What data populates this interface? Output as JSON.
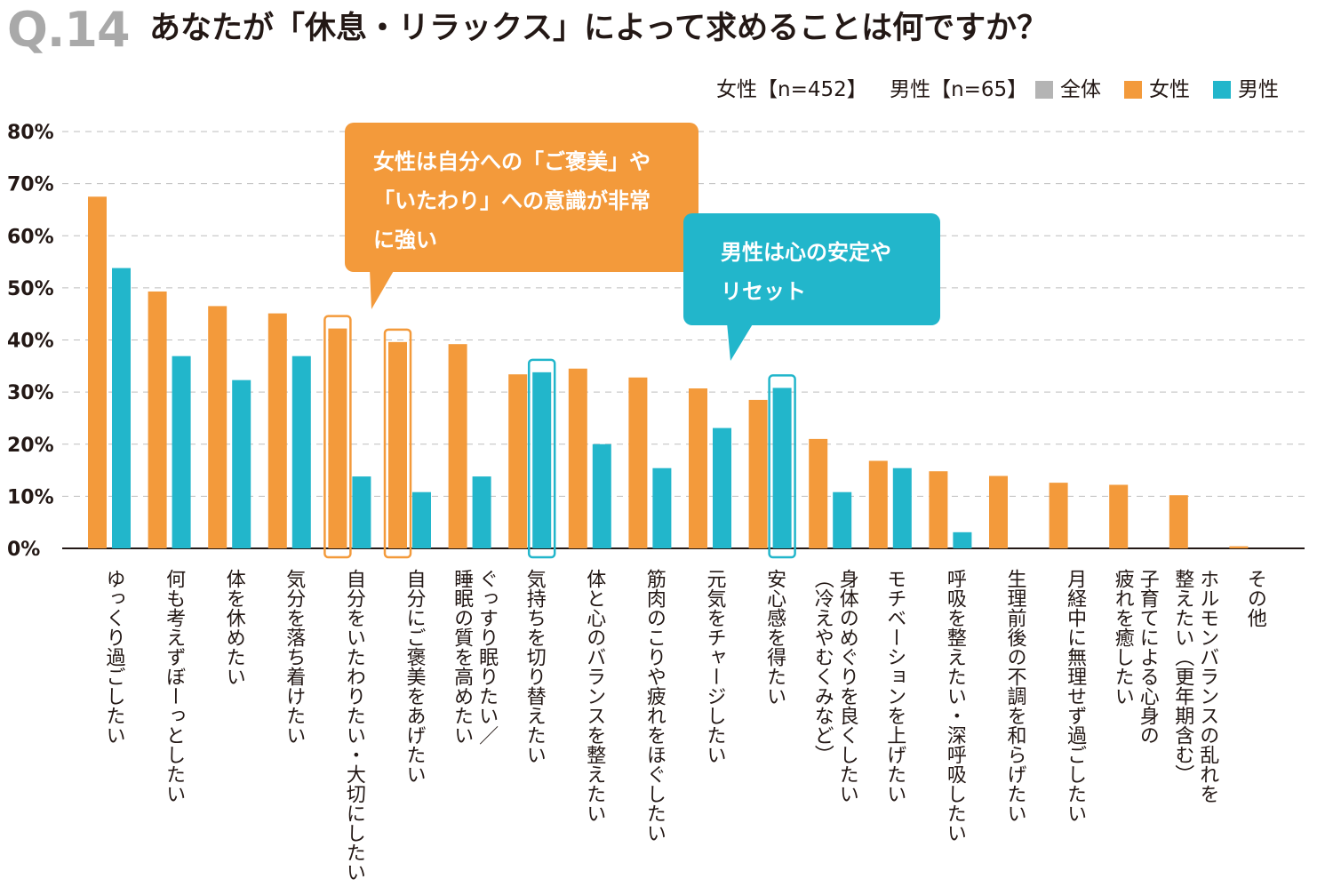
{
  "header": {
    "qnum": "Q.14",
    "question": "あなたが「休息・リラックス」によって求めることは何ですか？"
  },
  "sample": {
    "female": "女性【n=452】",
    "male": "男性【n=65】"
  },
  "legend": [
    {
      "label": "全体",
      "color": "#b4b4b4"
    },
    {
      "label": "女性",
      "color": "#f39a3b"
    },
    {
      "label": "男性",
      "color": "#22b6cb"
    }
  ],
  "callouts": {
    "female": [
      "女性は自分への「ご褒美」や",
      "「いたわり」への意識が非常",
      "に強い"
    ],
    "male": [
      "男性は心の安定や",
      "リセット"
    ]
  },
  "colors": {
    "female": "#f39a3b",
    "male": "#22b6cb",
    "grid": "#bdbdbd",
    "axis": "#231815"
  },
  "chart_data": {
    "type": "bar",
    "ylim": [
      0,
      80
    ],
    "yticks": [
      "0%",
      "10%",
      "20%",
      "30%",
      "40%",
      "50%",
      "60%",
      "70%",
      "80%"
    ],
    "grid": true,
    "legend_position": "top-right",
    "categories": [
      [
        "ゆっくり過ごしたい"
      ],
      [
        "何も考えずぼーっとしたい"
      ],
      [
        "体を休めたい"
      ],
      [
        "気分を落ち着けたい"
      ],
      [
        "自分をいたわりたい・大切にしたい"
      ],
      [
        "自分にご褒美をあげたい"
      ],
      [
        "ぐっすり眠りたい／",
        "睡眠の質を高めたい"
      ],
      [
        "気持ちを切り替えたい"
      ],
      [
        "体と心のバランスを整えたい"
      ],
      [
        "筋肉のこりや疲れをほぐしたい"
      ],
      [
        "元気をチャージしたい"
      ],
      [
        "安心感を得たい"
      ],
      [
        "身体のめぐりを良くしたい",
        "（冷えやむくみなど）"
      ],
      [
        "モチベーションを上げたい"
      ],
      [
        "呼吸を整えたい・深呼吸したい"
      ],
      [
        "生理前後の不調を和らげたい"
      ],
      [
        "月経中に無理せず過ごしたい"
      ],
      [
        "子育てによる心身の",
        "疲れを癒したい"
      ],
      [
        "ホルモンバランスの乱れを",
        "整えたい（更年期含む）"
      ],
      [
        "その他"
      ]
    ],
    "series": [
      {
        "name": "女性",
        "values": [
          67.5,
          49.3,
          46.5,
          45.1,
          42.2,
          39.6,
          39.2,
          33.4,
          34.5,
          32.8,
          30.7,
          28.5,
          21.0,
          16.8,
          14.8,
          13.9,
          12.6,
          12.2,
          10.2,
          0.4
        ]
      },
      {
        "name": "男性",
        "values": [
          53.8,
          36.9,
          32.3,
          36.9,
          13.8,
          10.8,
          13.8,
          33.8,
          20.0,
          15.4,
          23.1,
          30.8,
          10.8,
          15.4,
          3.1,
          0,
          0,
          0,
          0,
          0
        ]
      }
    ],
    "highlighted": [
      {
        "series": "女性",
        "index": 4
      },
      {
        "series": "女性",
        "index": 5
      },
      {
        "series": "男性",
        "index": 7
      },
      {
        "series": "男性",
        "index": 11
      }
    ]
  }
}
